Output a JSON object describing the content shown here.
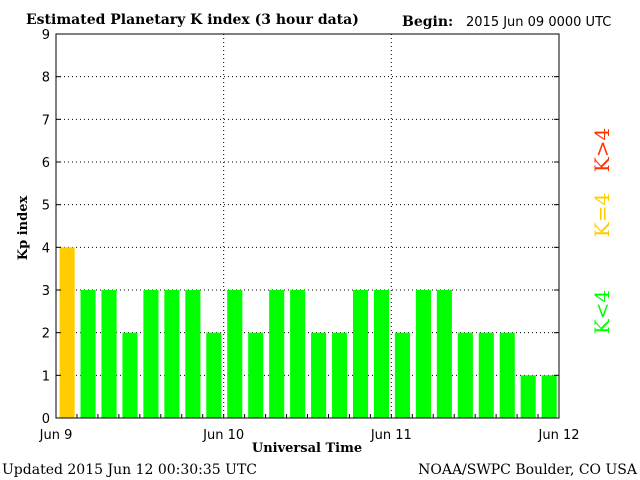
{
  "chart_data": {
    "type": "bar",
    "title": "Estimated Planetary K index (3 hour data)",
    "begin_label": "Begin:",
    "begin_value": "2015 Jun 09 0000 UTC",
    "xlabel": "Universal Time",
    "ylabel": "Kp index",
    "ylim": [
      0,
      9
    ],
    "yticks": [
      "0",
      "1",
      "2",
      "3",
      "4",
      "5",
      "6",
      "7",
      "8",
      "9"
    ],
    "xticks": [
      "Jun 9",
      "Jun 10",
      "Jun 11",
      "Jun 12"
    ],
    "values": [
      4,
      3,
      3,
      2,
      3,
      3,
      3,
      2,
      3,
      2,
      3,
      3,
      2,
      2,
      3,
      3,
      2,
      3,
      3,
      2,
      2,
      2,
      1,
      1
    ],
    "grid": true,
    "colors": {
      "below": "#00ff00",
      "equal": "#ffcc00",
      "above": "#ff0000"
    },
    "legend": [
      "K<4",
      "K=4",
      "K>4"
    ],
    "legend_placement": "right"
  },
  "footer": {
    "updated": "Updated 2015 Jun 12 00:30:35 UTC",
    "source": "NOAA/SWPC Boulder, CO USA"
  }
}
